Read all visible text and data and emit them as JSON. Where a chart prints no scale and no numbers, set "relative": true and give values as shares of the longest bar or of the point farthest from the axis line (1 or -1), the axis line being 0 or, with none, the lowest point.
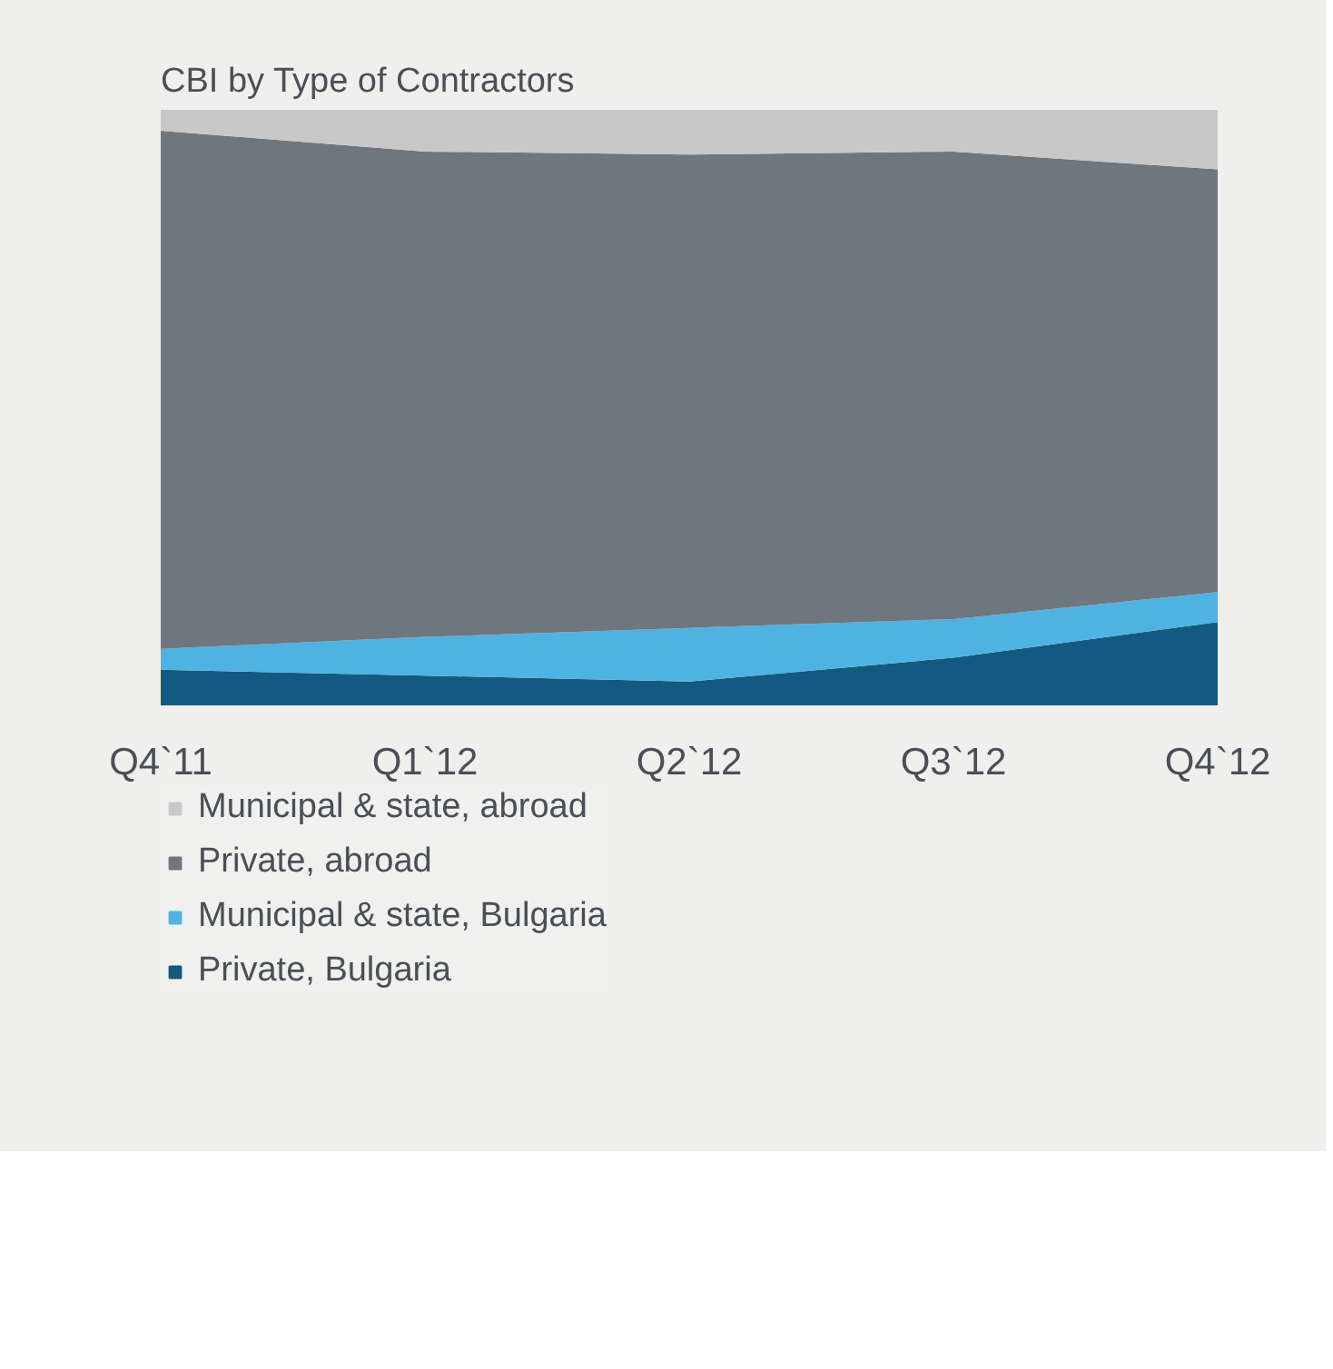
{
  "chart_data": {
    "type": "area",
    "title": "CBI by Type of Contractors",
    "relative": true,
    "stacked": true,
    "legend": "bottom",
    "categories": [
      "Q4`11",
      "Q1`12",
      "Q2`12",
      "Q3`12",
      "Q4`12"
    ],
    "series": [
      {
        "name": "Private, Bulgaria",
        "color": "#135a80",
        "values": [
          0.06,
          0.05,
          0.04,
          0.08,
          0.14
        ]
      },
      {
        "name": "Municipal & state, Bulgaria",
        "color": "#4fb3e2",
        "values": [
          0.035,
          0.065,
          0.09,
          0.065,
          0.05
        ]
      },
      {
        "name": "Private, abroad",
        "color": "#6e767e",
        "values": [
          0.87,
          0.815,
          0.795,
          0.785,
          0.71
        ]
      },
      {
        "name": "Municipal & state, abroad",
        "color": "#c8c8c8",
        "values": [
          0.035,
          0.07,
          0.075,
          0.07,
          0.1
        ]
      }
    ]
  }
}
